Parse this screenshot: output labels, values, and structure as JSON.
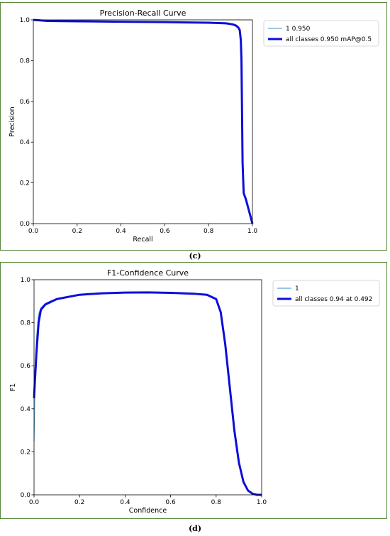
{
  "charts": [
    {
      "caption": "(c)",
      "chart_data": {
        "type": "line",
        "title": "Precision-Recall Curve",
        "xlabel": "Recall",
        "ylabel": "Precision",
        "xlim": [
          0,
          1
        ],
        "ylim": [
          0,
          1
        ],
        "xticks": [
          "0.0",
          "0.2",
          "0.4",
          "0.6",
          "0.8",
          "1.0"
        ],
        "yticks": [
          "0.0",
          "0.2",
          "0.4",
          "0.6",
          "0.8",
          "1.0"
        ],
        "grid": false,
        "legend_position": "outside-right",
        "series": [
          {
            "name": "1 0.950",
            "color": "#5fa8d3",
            "width": "thin",
            "x": [
              0.0,
              0.06,
              0.2,
              0.4,
              0.6,
              0.8,
              0.88,
              0.91,
              0.925,
              0.935,
              0.942,
              0.947,
              0.95,
              0.952,
              0.955,
              0.96,
              0.97,
              0.98,
              0.99,
              1.0
            ],
            "y": [
              1.0,
              0.995,
              0.993,
              0.991,
              0.989,
              0.986,
              0.983,
              0.978,
              0.972,
              0.963,
              0.95,
              0.9,
              0.8,
              0.6,
              0.3,
              0.15,
              0.12,
              0.08,
              0.04,
              0.0
            ]
          },
          {
            "name": "all classes 0.950 mAP@0.5",
            "color": "#0d0ddb",
            "width": "thick",
            "x": [
              0.0,
              0.06,
              0.2,
              0.4,
              0.6,
              0.8,
              0.88,
              0.91,
              0.925,
              0.935,
              0.942,
              0.947,
              0.95,
              0.952,
              0.955,
              0.96,
              0.97,
              0.98,
              0.99,
              1.0
            ],
            "y": [
              1.0,
              0.995,
              0.993,
              0.991,
              0.989,
              0.986,
              0.983,
              0.978,
              0.972,
              0.963,
              0.95,
              0.9,
              0.8,
              0.6,
              0.3,
              0.15,
              0.12,
              0.08,
              0.04,
              0.0
            ]
          }
        ]
      }
    },
    {
      "caption": "(d)",
      "chart_data": {
        "type": "line",
        "title": "F1-Confidence Curve",
        "xlabel": "Confidence",
        "ylabel": "F1",
        "xlim": [
          0,
          1
        ],
        "ylim": [
          0,
          1
        ],
        "xticks": [
          "0.0",
          "0.2",
          "0.4",
          "0.6",
          "0.8",
          "1.0"
        ],
        "yticks": [
          "0.0",
          "0.2",
          "0.4",
          "0.6",
          "0.8",
          "1.0"
        ],
        "grid": false,
        "legend_position": "outside-right",
        "series": [
          {
            "name": "1",
            "color": "#5fa8d3",
            "width": "thin",
            "x": [
              0.0,
              0.005,
              0.01,
              0.02,
              0.03,
              0.05,
              0.08,
              0.1,
              0.2,
              0.3,
              0.4,
              0.5,
              0.6,
              0.7,
              0.76,
              0.8,
              0.82,
              0.84,
              0.86,
              0.88,
              0.9,
              0.92,
              0.94,
              0.96,
              0.98,
              1.0
            ],
            "y": [
              0.25,
              0.55,
              0.72,
              0.84,
              0.87,
              0.89,
              0.905,
              0.91,
              0.93,
              0.937,
              0.94,
              0.941,
              0.939,
              0.935,
              0.93,
              0.91,
              0.85,
              0.7,
              0.5,
              0.3,
              0.15,
              0.06,
              0.02,
              0.005,
              0.0,
              0.0
            ]
          },
          {
            "name": "all classes 0.94 at 0.492",
            "color": "#0d0ddb",
            "width": "thick",
            "x": [
              0.0,
              0.005,
              0.01,
              0.02,
              0.03,
              0.05,
              0.08,
              0.1,
              0.2,
              0.3,
              0.4,
              0.5,
              0.6,
              0.7,
              0.76,
              0.8,
              0.82,
              0.84,
              0.86,
              0.88,
              0.9,
              0.92,
              0.94,
              0.96,
              0.98,
              1.0
            ],
            "y": [
              0.45,
              0.55,
              0.65,
              0.8,
              0.86,
              0.885,
              0.9,
              0.91,
              0.93,
              0.937,
              0.94,
              0.941,
              0.939,
              0.935,
              0.93,
              0.91,
              0.85,
              0.7,
              0.5,
              0.3,
              0.15,
              0.06,
              0.02,
              0.005,
              0.0,
              0.0
            ]
          }
        ]
      }
    }
  ]
}
